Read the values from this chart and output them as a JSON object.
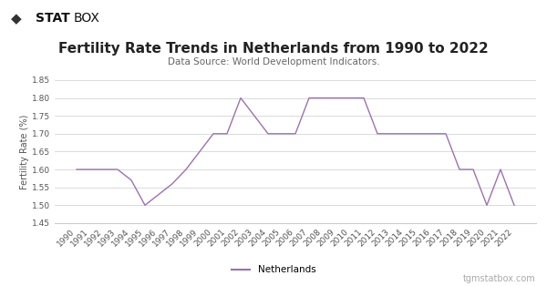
{
  "title": "Fertility Rate Trends in Netherlands from 1990 to 2022",
  "subtitle": "Data Source: World Development Indicators.",
  "ylabel": "Fertility Rate (%)",
  "line_color": "#9b72b0",
  "background_color": "#ffffff",
  "header_background": "#f0f0f0",
  "grid_color": "#cccccc",
  "years": [
    1990,
    1991,
    1992,
    1993,
    1994,
    1995,
    1996,
    1997,
    1998,
    1999,
    2000,
    2001,
    2002,
    2003,
    2004,
    2005,
    2006,
    2007,
    2008,
    2009,
    2010,
    2011,
    2012,
    2013,
    2014,
    2015,
    2016,
    2017,
    2018,
    2019,
    2020,
    2021,
    2022
  ],
  "values": [
    1.6,
    1.6,
    1.6,
    1.6,
    1.57,
    1.5,
    1.53,
    1.56,
    1.6,
    1.65,
    1.7,
    1.7,
    1.8,
    1.75,
    1.7,
    1.7,
    1.7,
    1.8,
    1.8,
    1.8,
    1.8,
    1.8,
    1.7,
    1.7,
    1.7,
    1.7,
    1.7,
    1.7,
    1.6,
    1.6,
    1.5,
    1.6,
    1.5
  ],
  "ylim": [
    1.45,
    1.85
  ],
  "yticks": [
    1.45,
    1.5,
    1.55,
    1.6,
    1.65,
    1.7,
    1.75,
    1.8,
    1.85
  ],
  "legend_label": "Netherlands",
  "watermark": "tgmstatbox.com",
  "title_fontsize": 11,
  "subtitle_fontsize": 7.5,
  "tick_fontsize": 6.5,
  "ylabel_fontsize": 7
}
